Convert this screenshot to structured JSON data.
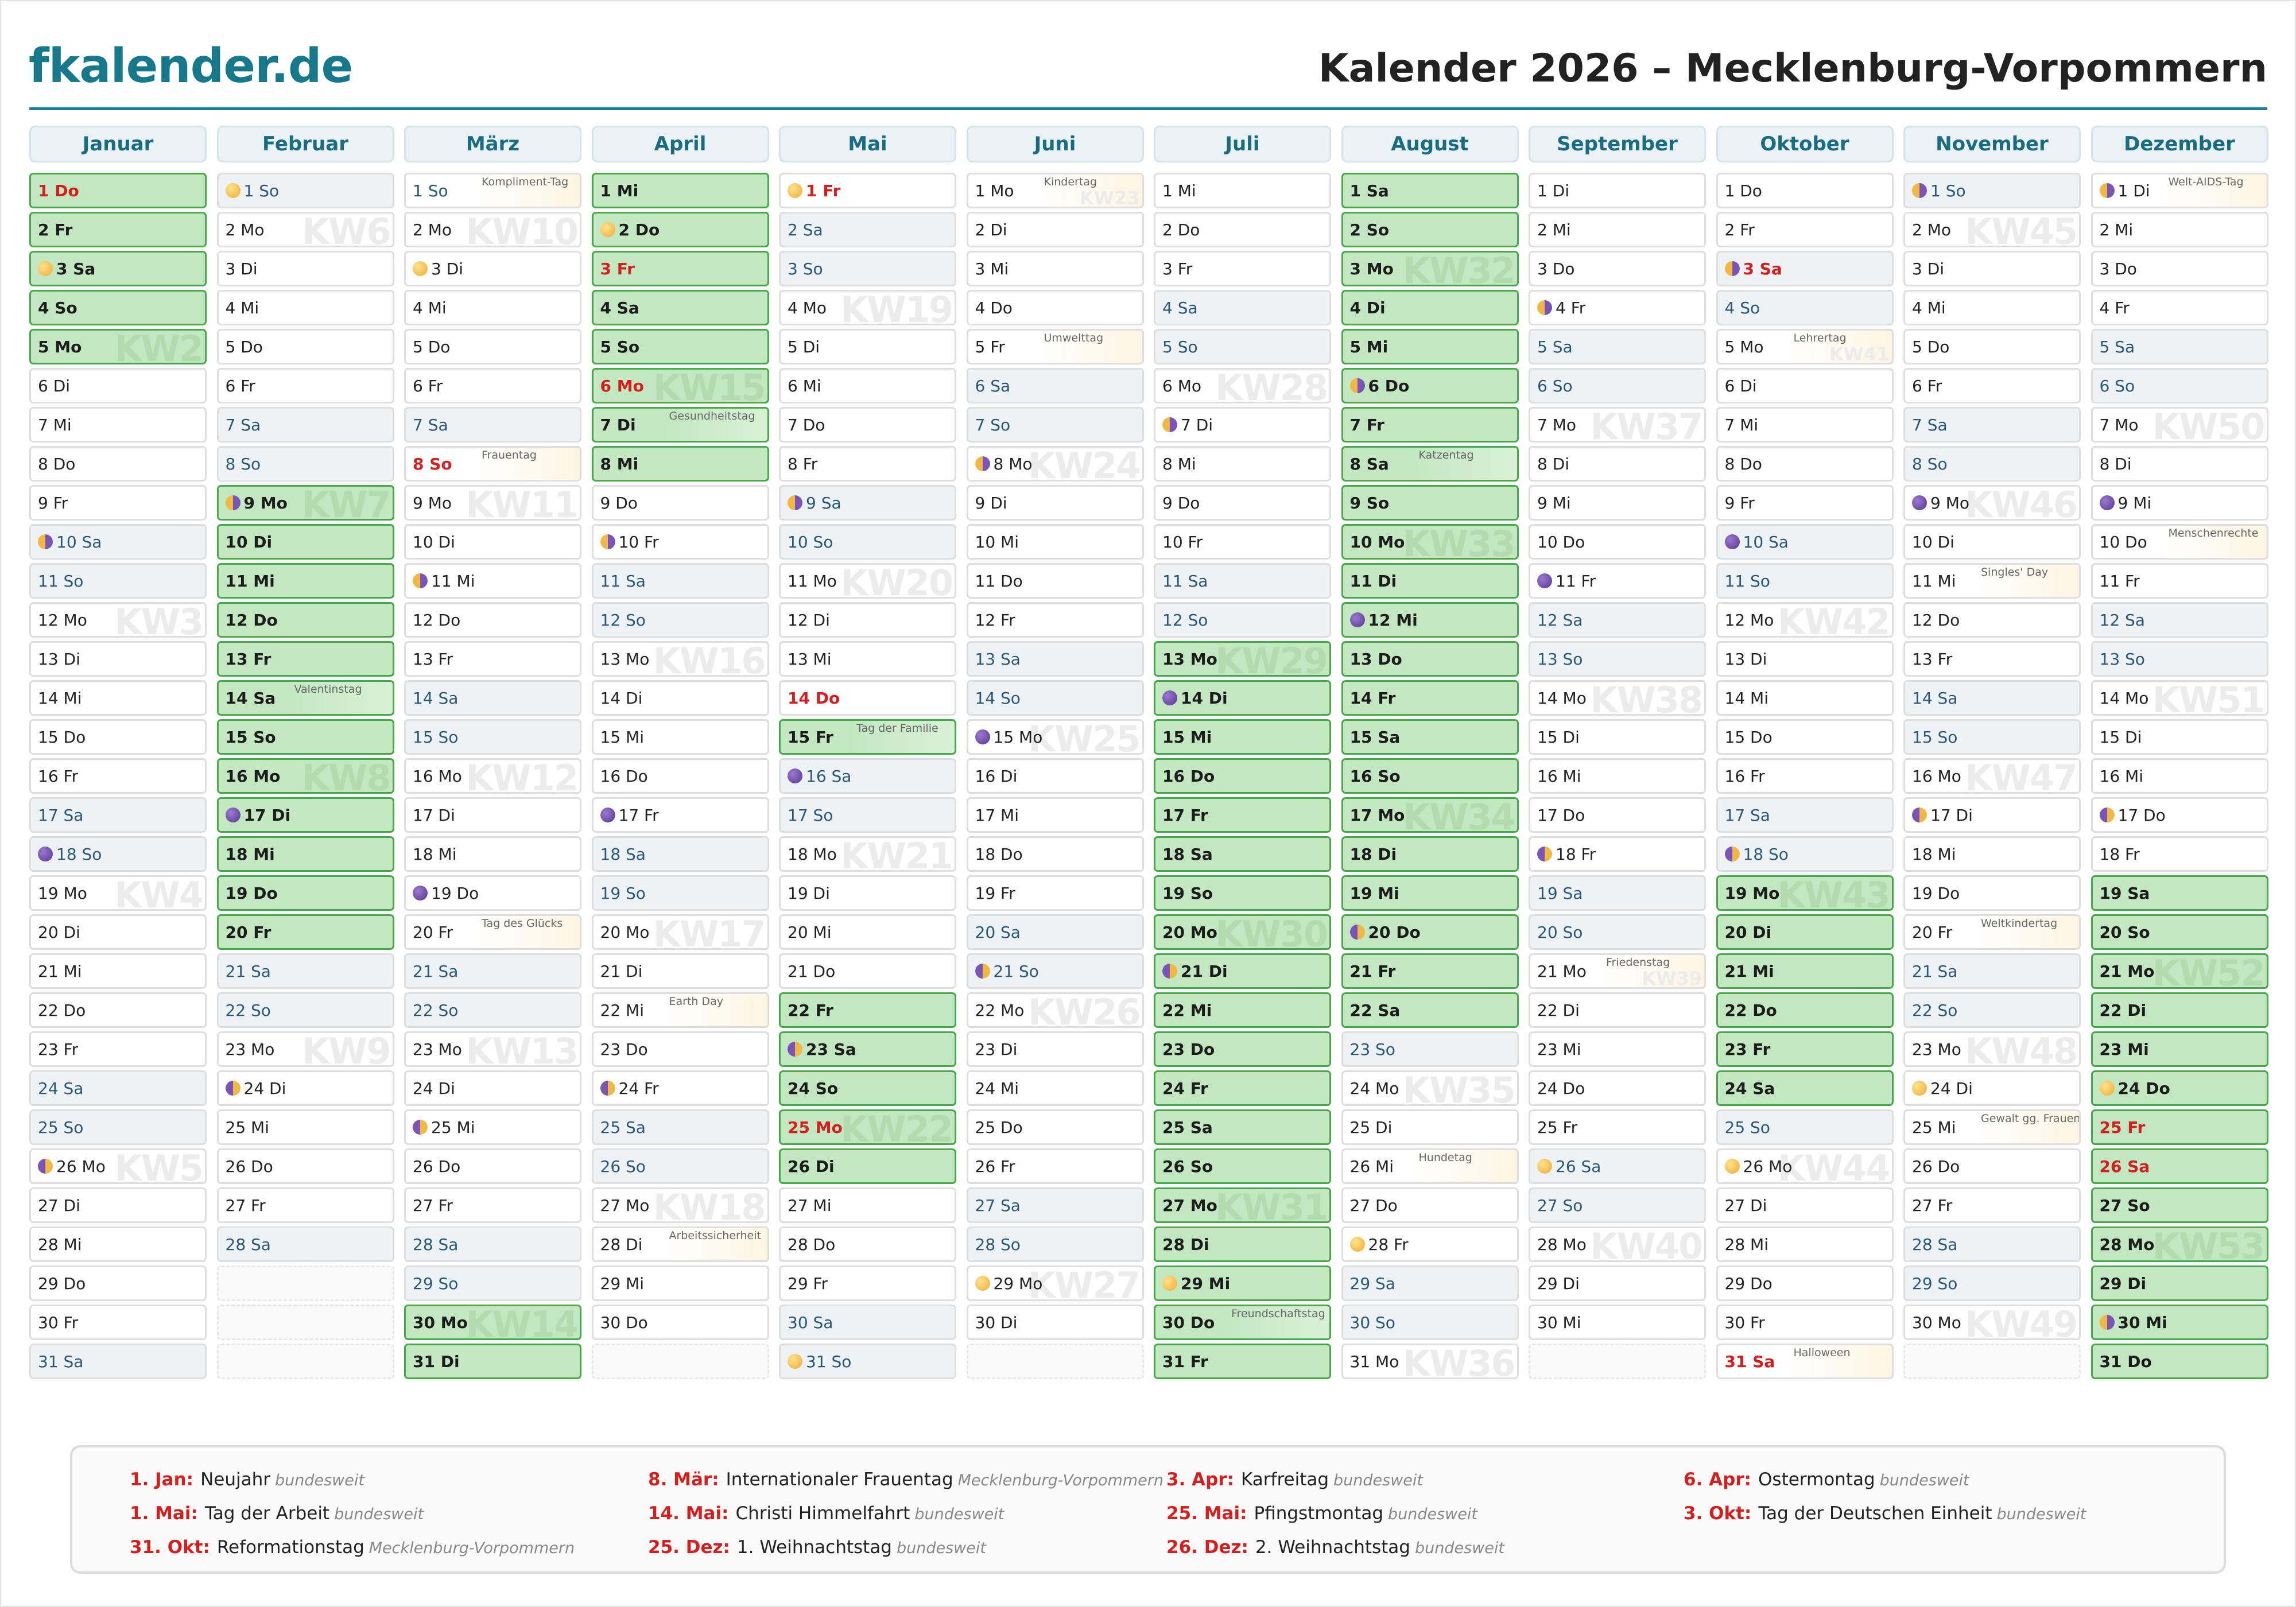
{
  "header": {
    "logo": "fkalender.de",
    "title": "Kalender 2026 – Mecklenburg-Vorpommern"
  },
  "colors": {
    "brand": "#17788c",
    "holiday_red": "#d21f1f",
    "school_holiday_green": "#c3e8c1",
    "weekend": "#eef2f5",
    "moon_full": "#f2b846",
    "moon_new": "#6a4aa0"
  },
  "weekdays": [
    "Mo",
    "Di",
    "Mi",
    "Do",
    "Fr",
    "Sa",
    "So"
  ],
  "months": [
    {
      "name": "Januar",
      "start": "Do",
      "length": 31,
      "school": [
        [
          1,
          5
        ]
      ],
      "red": [
        1
      ],
      "moons": {
        "3": "full",
        "10": "last",
        "18": "new",
        "26": "first"
      },
      "events": {},
      "kw": {
        "5": "KW2",
        "12": "KW3",
        "19": "KW4",
        "26": "KW5"
      }
    },
    {
      "name": "Februar",
      "start": "So",
      "length": 28,
      "school": [
        [
          9,
          20
        ]
      ],
      "red": [],
      "moons": {
        "1": "full",
        "9": "last",
        "17": "new",
        "24": "first"
      },
      "events": {
        "14": "Valentinstag"
      },
      "kw": {
        "2": "KW6",
        "9": "KW7",
        "16": "KW8",
        "23": "KW9"
      }
    },
    {
      "name": "März",
      "start": "So",
      "length": 31,
      "school": [
        [
          30,
          31
        ]
      ],
      "red": [
        8
      ],
      "moons": {
        "3": "full",
        "11": "last",
        "19": "new",
        "25": "first"
      },
      "events": {
        "1": "Kompliment-Tag",
        "8": "Frauentag",
        "20": "Tag des Glücks"
      },
      "kw": {
        "2": "KW10",
        "9": "KW11",
        "16": "KW12",
        "23": "KW13",
        "30": "KW14"
      }
    },
    {
      "name": "April",
      "start": "Mi",
      "length": 30,
      "school": [
        [
          1,
          8
        ]
      ],
      "red": [
        3,
        6
      ],
      "moons": {
        "2": "full",
        "10": "last",
        "17": "new",
        "24": "first"
      },
      "events": {
        "7": "Gesundheitstag",
        "22": "Earth Day",
        "28": "Arbeitssicherheit"
      },
      "kw": {
        "6": "KW15",
        "13": "KW16",
        "20": "KW17",
        "27": "KW18"
      }
    },
    {
      "name": "Mai",
      "start": "Fr",
      "length": 31,
      "school": [
        [
          15,
          15
        ],
        [
          22,
          26
        ]
      ],
      "red": [
        1,
        14,
        25
      ],
      "moons": {
        "1": "full",
        "9": "last",
        "16": "new",
        "23": "first",
        "31": "full"
      },
      "events": {
        "15": "Tag der Familie"
      },
      "kw": {
        "4": "KW19",
        "11": "KW20",
        "18": "KW21",
        "25": "KW22"
      }
    },
    {
      "name": "Juni",
      "start": "Mo",
      "length": 30,
      "school": [],
      "red": [],
      "moons": {
        "8": "last",
        "15": "new",
        "21": "first",
        "29": "full"
      },
      "events": {
        "1": "Kindertag",
        "5": "Umwelttag"
      },
      "kw": {
        "1": "KW23",
        "8": "KW24",
        "15": "KW25",
        "22": "KW26",
        "29": "KW27"
      }
    },
    {
      "name": "Juli",
      "start": "Mi",
      "length": 31,
      "school": [
        [
          13,
          31
        ]
      ],
      "red": [],
      "moons": {
        "7": "last",
        "14": "new",
        "21": "first",
        "29": "full"
      },
      "events": {
        "30": "Freundschaftstag"
      },
      "kw": {
        "6": "KW28",
        "13": "KW29",
        "20": "KW30",
        "27": "KW31"
      }
    },
    {
      "name": "August",
      "start": "Sa",
      "length": 31,
      "school": [
        [
          1,
          22
        ]
      ],
      "red": [],
      "moons": {
        "6": "last",
        "12": "new",
        "20": "first",
        "28": "full"
      },
      "events": {
        "8": "Katzentag",
        "26": "Hundetag"
      },
      "kw": {
        "3": "KW32",
        "10": "KW33",
        "17": "KW34",
        "24": "KW35",
        "31": "KW36"
      }
    },
    {
      "name": "September",
      "start": "Di",
      "length": 30,
      "school": [],
      "red": [],
      "moons": {
        "4": "last",
        "11": "new",
        "18": "first",
        "26": "full"
      },
      "events": {
        "21": "Friedenstag"
      },
      "kw": {
        "7": "KW37",
        "14": "KW38",
        "21": "KW39",
        "28": "KW40"
      }
    },
    {
      "name": "Oktober",
      "start": "Do",
      "length": 31,
      "school": [
        [
          19,
          24
        ]
      ],
      "red": [
        3,
        31
      ],
      "moons": {
        "3": "last",
        "10": "new",
        "18": "first",
        "26": "full"
      },
      "events": {
        "5": "Lehrertag",
        "31": "Halloween"
      },
      "kw": {
        "5": "KW41",
        "12": "KW42",
        "19": "KW43",
        "26": "KW44"
      }
    },
    {
      "name": "November",
      "start": "So",
      "length": 30,
      "school": [],
      "red": [],
      "moons": {
        "1": "last",
        "9": "new",
        "17": "first",
        "24": "full"
      },
      "events": {
        "11": "Singles' Day",
        "20": "Weltkindertag",
        "25": "Gewalt gg. Frauen"
      },
      "kw": {
        "2": "KW45",
        "9": "KW46",
        "16": "KW47",
        "23": "KW48",
        "30": "KW49"
      }
    },
    {
      "name": "Dezember",
      "start": "Di",
      "length": 31,
      "school": [
        [
          19,
          31
        ]
      ],
      "red": [
        25,
        26
      ],
      "moons": {
        "1": "last",
        "9": "new",
        "17": "first",
        "24": "full",
        "30": "last"
      },
      "events": {
        "1": "Welt-AIDS-Tag",
        "10": "Menschenrechte"
      },
      "kw": {
        "7": "KW50",
        "14": "KW51",
        "21": "KW52",
        "28": "KW53"
      }
    }
  ],
  "legend": [
    {
      "date": "1. Jan:",
      "name": "Neujahr",
      "region": "bundesweit"
    },
    {
      "date": "8. Mär:",
      "name": "Internationaler Frauentag",
      "region": "Mecklenburg-Vorpommern"
    },
    {
      "date": "3. Apr:",
      "name": "Karfreitag",
      "region": "bundesweit"
    },
    {
      "date": "6. Apr:",
      "name": "Ostermontag",
      "region": "bundesweit"
    },
    {
      "date": "1. Mai:",
      "name": "Tag der Arbeit",
      "region": "bundesweit"
    },
    {
      "date": "14. Mai:",
      "name": "Christi Himmelfahrt",
      "region": "bundesweit"
    },
    {
      "date": "25. Mai:",
      "name": "Pfingstmontag",
      "region": "bundesweit"
    },
    {
      "date": "3. Okt:",
      "name": "Tag der Deutschen Einheit",
      "region": "bundesweit"
    },
    {
      "date": "31. Okt:",
      "name": "Reformationstag",
      "region": "Mecklenburg-Vorpommern"
    },
    {
      "date": "25. Dez:",
      "name": "1. Weihnachtstag",
      "region": "bundesweit"
    },
    {
      "date": "26. Dez:",
      "name": "2. Weihnachtstag",
      "region": "bundesweit"
    }
  ]
}
